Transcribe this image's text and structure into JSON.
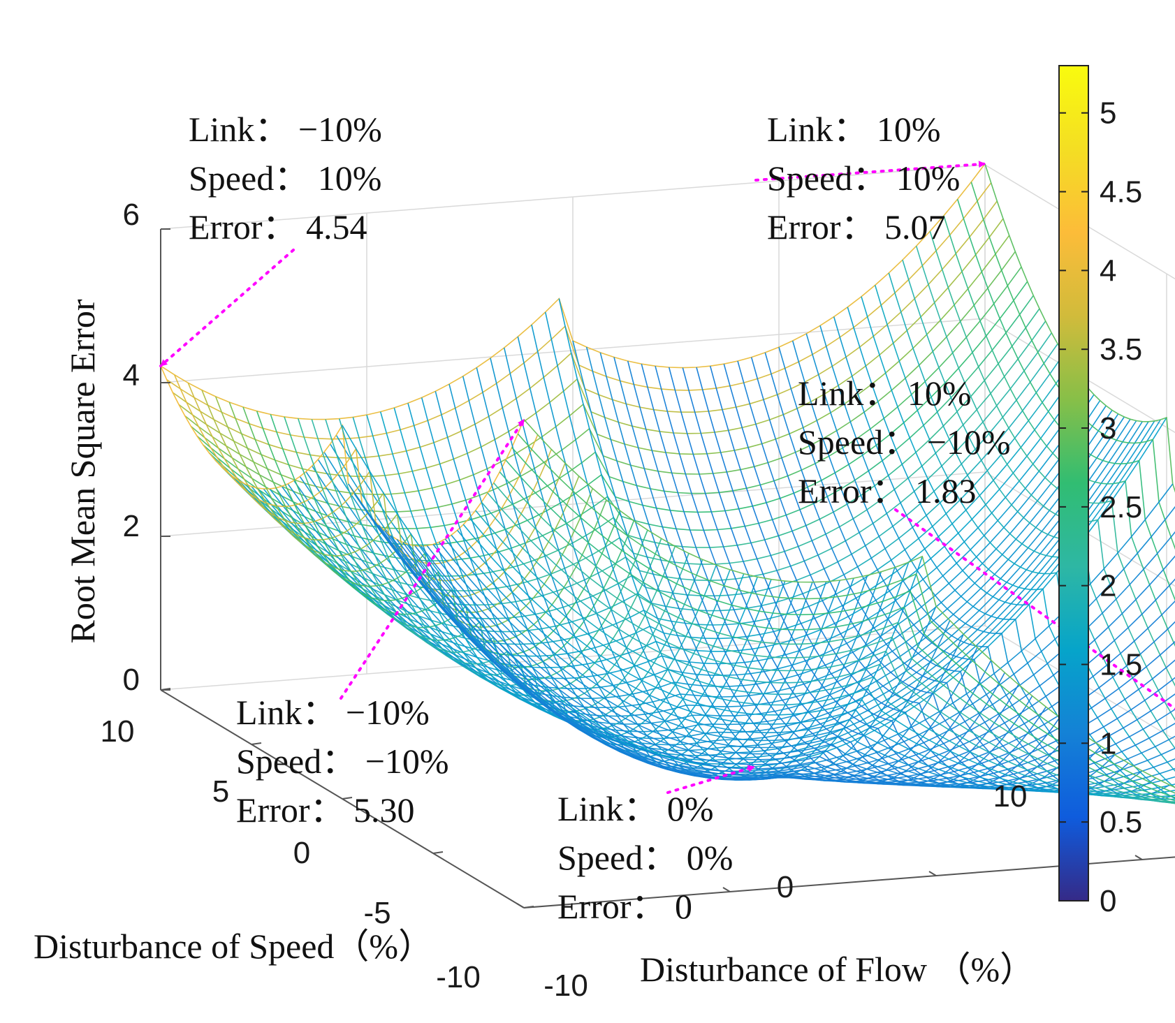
{
  "chart_data": {
    "type": "surface",
    "title": "",
    "xlabel": "Disturbance of Flow （%）",
    "ylabel": "Disturbance of Speed（%）",
    "zlabel": "Root Mean Square Error",
    "xlim": [
      -10,
      10
    ],
    "ylim": [
      -10,
      10
    ],
    "zlim": [
      0,
      6
    ],
    "x_ticks": [
      "-10",
      "0",
      "10"
    ],
    "y_ticks": [
      "-10",
      "-5",
      "0",
      "5",
      "10"
    ],
    "z_ticks": [
      "0",
      "2",
      "4",
      "6"
    ],
    "colorbar": {
      "min": 0,
      "max": 5.3,
      "ticks": [
        "0",
        "0.5",
        "1",
        "1.5",
        "2",
        "2.5",
        "3",
        "3.5",
        "4",
        "4.5",
        "5"
      ],
      "colormap": "parula"
    },
    "grid": true,
    "annotation_color": "#ff00ff",
    "corner_points": [
      {
        "link": -10,
        "speed": 10,
        "error": 4.54
      },
      {
        "link": 10,
        "speed": 10,
        "error": 5.07
      },
      {
        "link": 10,
        "speed": -10,
        "error": 1.83
      },
      {
        "link": -10,
        "speed": -10,
        "error": 5.3
      },
      {
        "link": 0,
        "speed": 0,
        "error": 0
      }
    ],
    "annotations": [
      {
        "id": "a1",
        "lines": [
          "Link： −10%",
          "Speed： 10%",
          "Error： 4.54"
        ]
      },
      {
        "id": "a2",
        "lines": [
          "Link： 10%",
          "Speed： 10%",
          "Error： 5.07"
        ]
      },
      {
        "id": "a3",
        "lines": [
          "Link： 10%",
          "Speed： −10%",
          "Error： 1.83"
        ]
      },
      {
        "id": "a4",
        "lines": [
          "Link： −10%",
          "Speed： −10%",
          "Error： 5.30"
        ]
      },
      {
        "id": "a5",
        "lines": [
          "Link： 0%",
          "Speed： 0%",
          "Error： 0"
        ]
      }
    ]
  }
}
